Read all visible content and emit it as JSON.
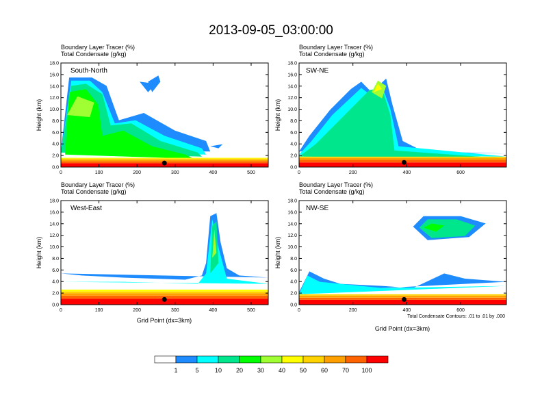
{
  "title": "2013-09-05_03:00:00",
  "colors": {
    "levels": [
      "#ffffff",
      "#1e8cff",
      "#00ffff",
      "#00e68c",
      "#00ff00",
      "#a0ff32",
      "#ffff00",
      "#ffd200",
      "#ffa000",
      "#ff6400",
      "#ff0000"
    ],
    "contour": "#000000"
  },
  "chart_data": [
    {
      "type": "heatmap",
      "panel": "South-North",
      "label1": "Boundary Layer Tracer   (%)",
      "label2": "Total Condensate   (g/kg)",
      "xlabel": "",
      "ylabel": "Height (km)",
      "xlim": [
        0,
        545
      ],
      "ylim": [
        0,
        18
      ],
      "xticks": [
        0,
        100,
        200,
        300,
        400,
        500
      ],
      "yticks": [
        "0.0",
        "2.0",
        "4.0",
        "6.0",
        "8.0",
        "10.0",
        "12.0",
        "14.0",
        "16.0",
        "18.0"
      ],
      "marker": {
        "x": 272,
        "y": 0.7
      },
      "boundary_layer_top_km": 1.6
    },
    {
      "type": "heatmap",
      "panel": "SW-NE",
      "label1": "Boundary Layer Tracer   (%)",
      "label2": "Total Condensate   (g/kg)",
      "xlabel": "",
      "ylabel": "Height (km)",
      "xlim": [
        0,
        770
      ],
      "ylim": [
        0,
        18
      ],
      "xticks": [
        0,
        200,
        400,
        600
      ],
      "yticks": [
        "0.0",
        "2.0",
        "4.0",
        "6.0",
        "8.0",
        "10.0",
        "12.0",
        "14.0",
        "16.0",
        "18.0"
      ],
      "marker": {
        "x": 390,
        "y": 0.8
      },
      "boundary_layer_top_km": 1.8
    },
    {
      "type": "heatmap",
      "panel": "West-East",
      "label1": "Boundary Layer Tracer   (%)",
      "label2": "Total Condensate   (g/kg)",
      "xlabel": "Grid Point (dx=3km)",
      "ylabel": "Height (km)",
      "xlim": [
        0,
        545
      ],
      "ylim": [
        0,
        18
      ],
      "xticks": [
        0,
        100,
        200,
        300,
        400,
        500
      ],
      "yticks": [
        "0.0",
        "2.0",
        "4.0",
        "6.0",
        "8.0",
        "10.0",
        "12.0",
        "14.0",
        "16.0",
        "18.0"
      ],
      "marker": {
        "x": 272,
        "y": 0.9
      },
      "boundary_layer_top_km": 2.6
    },
    {
      "type": "heatmap",
      "panel": "NW-SE",
      "label1": "Boundary Layer Tracer   (%)",
      "label2": "Total Condensate   (g/kg)",
      "xlabel": "Grid Point (dx=3km)",
      "ylabel": "Height (km)",
      "xlim": [
        0,
        770
      ],
      "ylim": [
        0,
        18
      ],
      "xticks": [
        0,
        200,
        400,
        600
      ],
      "yticks": [
        "0.0",
        "2.0",
        "4.0",
        "6.0",
        "8.0",
        "10.0",
        "12.0",
        "14.0",
        "16.0",
        "18.0"
      ],
      "marker": {
        "x": 390,
        "y": 0.9
      },
      "boundary_layer_top_km": 1.8
    }
  ],
  "colorbar": {
    "labels": [
      "1",
      "5",
      "10",
      "20",
      "30",
      "40",
      "50",
      "60",
      "70",
      "100"
    ]
  },
  "contour_note": "Total Condensate Contours: .01 to .01 by .000"
}
